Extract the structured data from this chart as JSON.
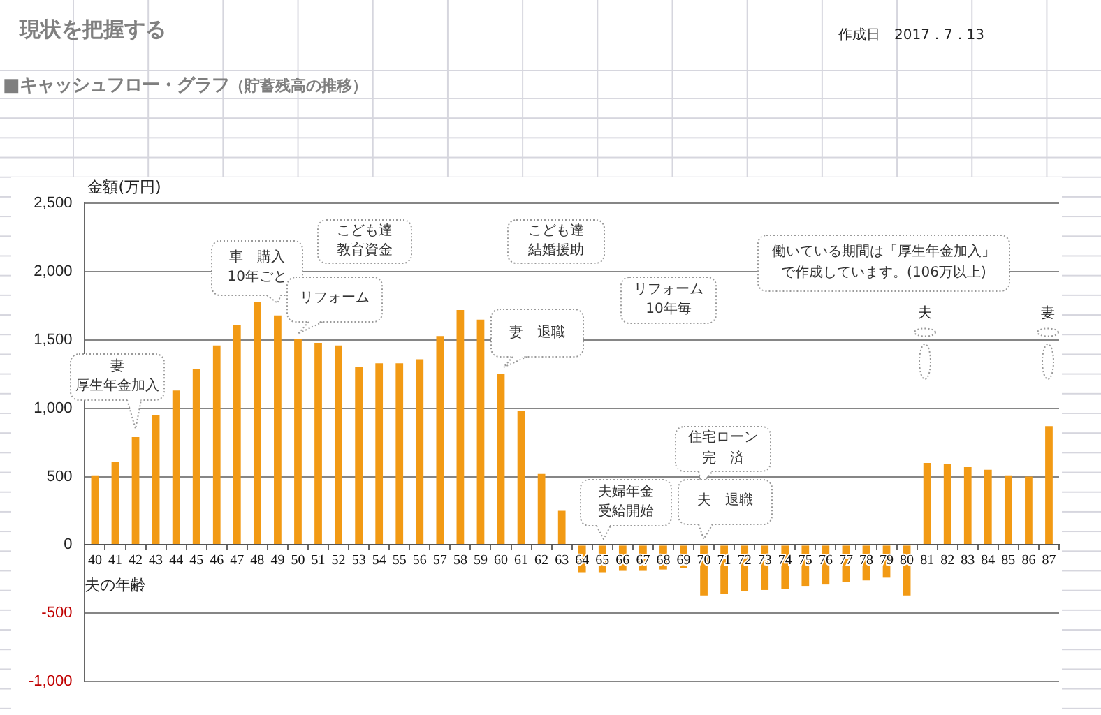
{
  "chart_data": {
    "type": "bar",
    "title": "■キャッシュフロー・グラフ",
    "subtitle": "（貯蓄残高の推移）",
    "xlabel": "夫の年齢",
    "ylabel": "金額(万円)",
    "categories": [
      "40",
      "41",
      "42",
      "43",
      "44",
      "45",
      "46",
      "47",
      "48",
      "49",
      "50",
      "51",
      "52",
      "53",
      "54",
      "55",
      "56",
      "57",
      "58",
      "59",
      "60",
      "61",
      "62",
      "63",
      "64",
      "65",
      "66",
      "67",
      "68",
      "69",
      "70",
      "71",
      "72",
      "73",
      "74",
      "75",
      "76",
      "77",
      "78",
      "79",
      "80",
      "81",
      "82",
      "83",
      "84",
      "85",
      "86",
      "87"
    ],
    "values": [
      510,
      610,
      790,
      950,
      1130,
      1290,
      1460,
      1610,
      1780,
      1680,
      1510,
      1480,
      1460,
      1300,
      1330,
      1330,
      1360,
      1530,
      1720,
      1650,
      1250,
      980,
      520,
      250,
      -200,
      -200,
      -190,
      -190,
      -180,
      -170,
      -370,
      -360,
      -340,
      -330,
      -320,
      -300,
      -290,
      -270,
      -260,
      -240,
      -370,
      600,
      590,
      570,
      550,
      510,
      500,
      870
    ],
    "color": "#f29a14",
    "ylim": [
      -1000,
      2500
    ],
    "yticks": [
      {
        "value": -1000,
        "label": "-1,000"
      },
      -500,
      0,
      500,
      {
        "value": 1000,
        "label": "1,000"
      },
      {
        "value": 1500,
        "label": "1,500"
      },
      {
        "value": 2000,
        "label": "2,000"
      },
      {
        "value": 2500,
        "label": "2,500"
      }
    ],
    "grid": "y",
    "annotations": [
      "現状を把握する",
      "作成日　2017．7．13",
      {
        "text": "妻厚生年金加入",
        "x": "42",
        "y": 790
      },
      {
        "text": "車　購入10年ごと",
        "x": "49",
        "y": 1680
      },
      "こども達教育資金",
      {
        "text": "リフォーム",
        "x": "50",
        "y": 1510
      },
      "こども達結婚援助",
      {
        "text": "妻　退職",
        "x": "60",
        "y": 1250
      },
      {
        "text": "夫婦年金受給開始",
        "x": "65",
        "y": 0
      },
      "リフォーム10年毎",
      "住宅ローン完　済",
      {
        "text": "夫　退職",
        "x": "70",
        "y": 0
      },
      "働いている期間は「厚生年金加入」で作成しています。(106万以上)",
      "夫",
      "妻"
    ]
  }
}
